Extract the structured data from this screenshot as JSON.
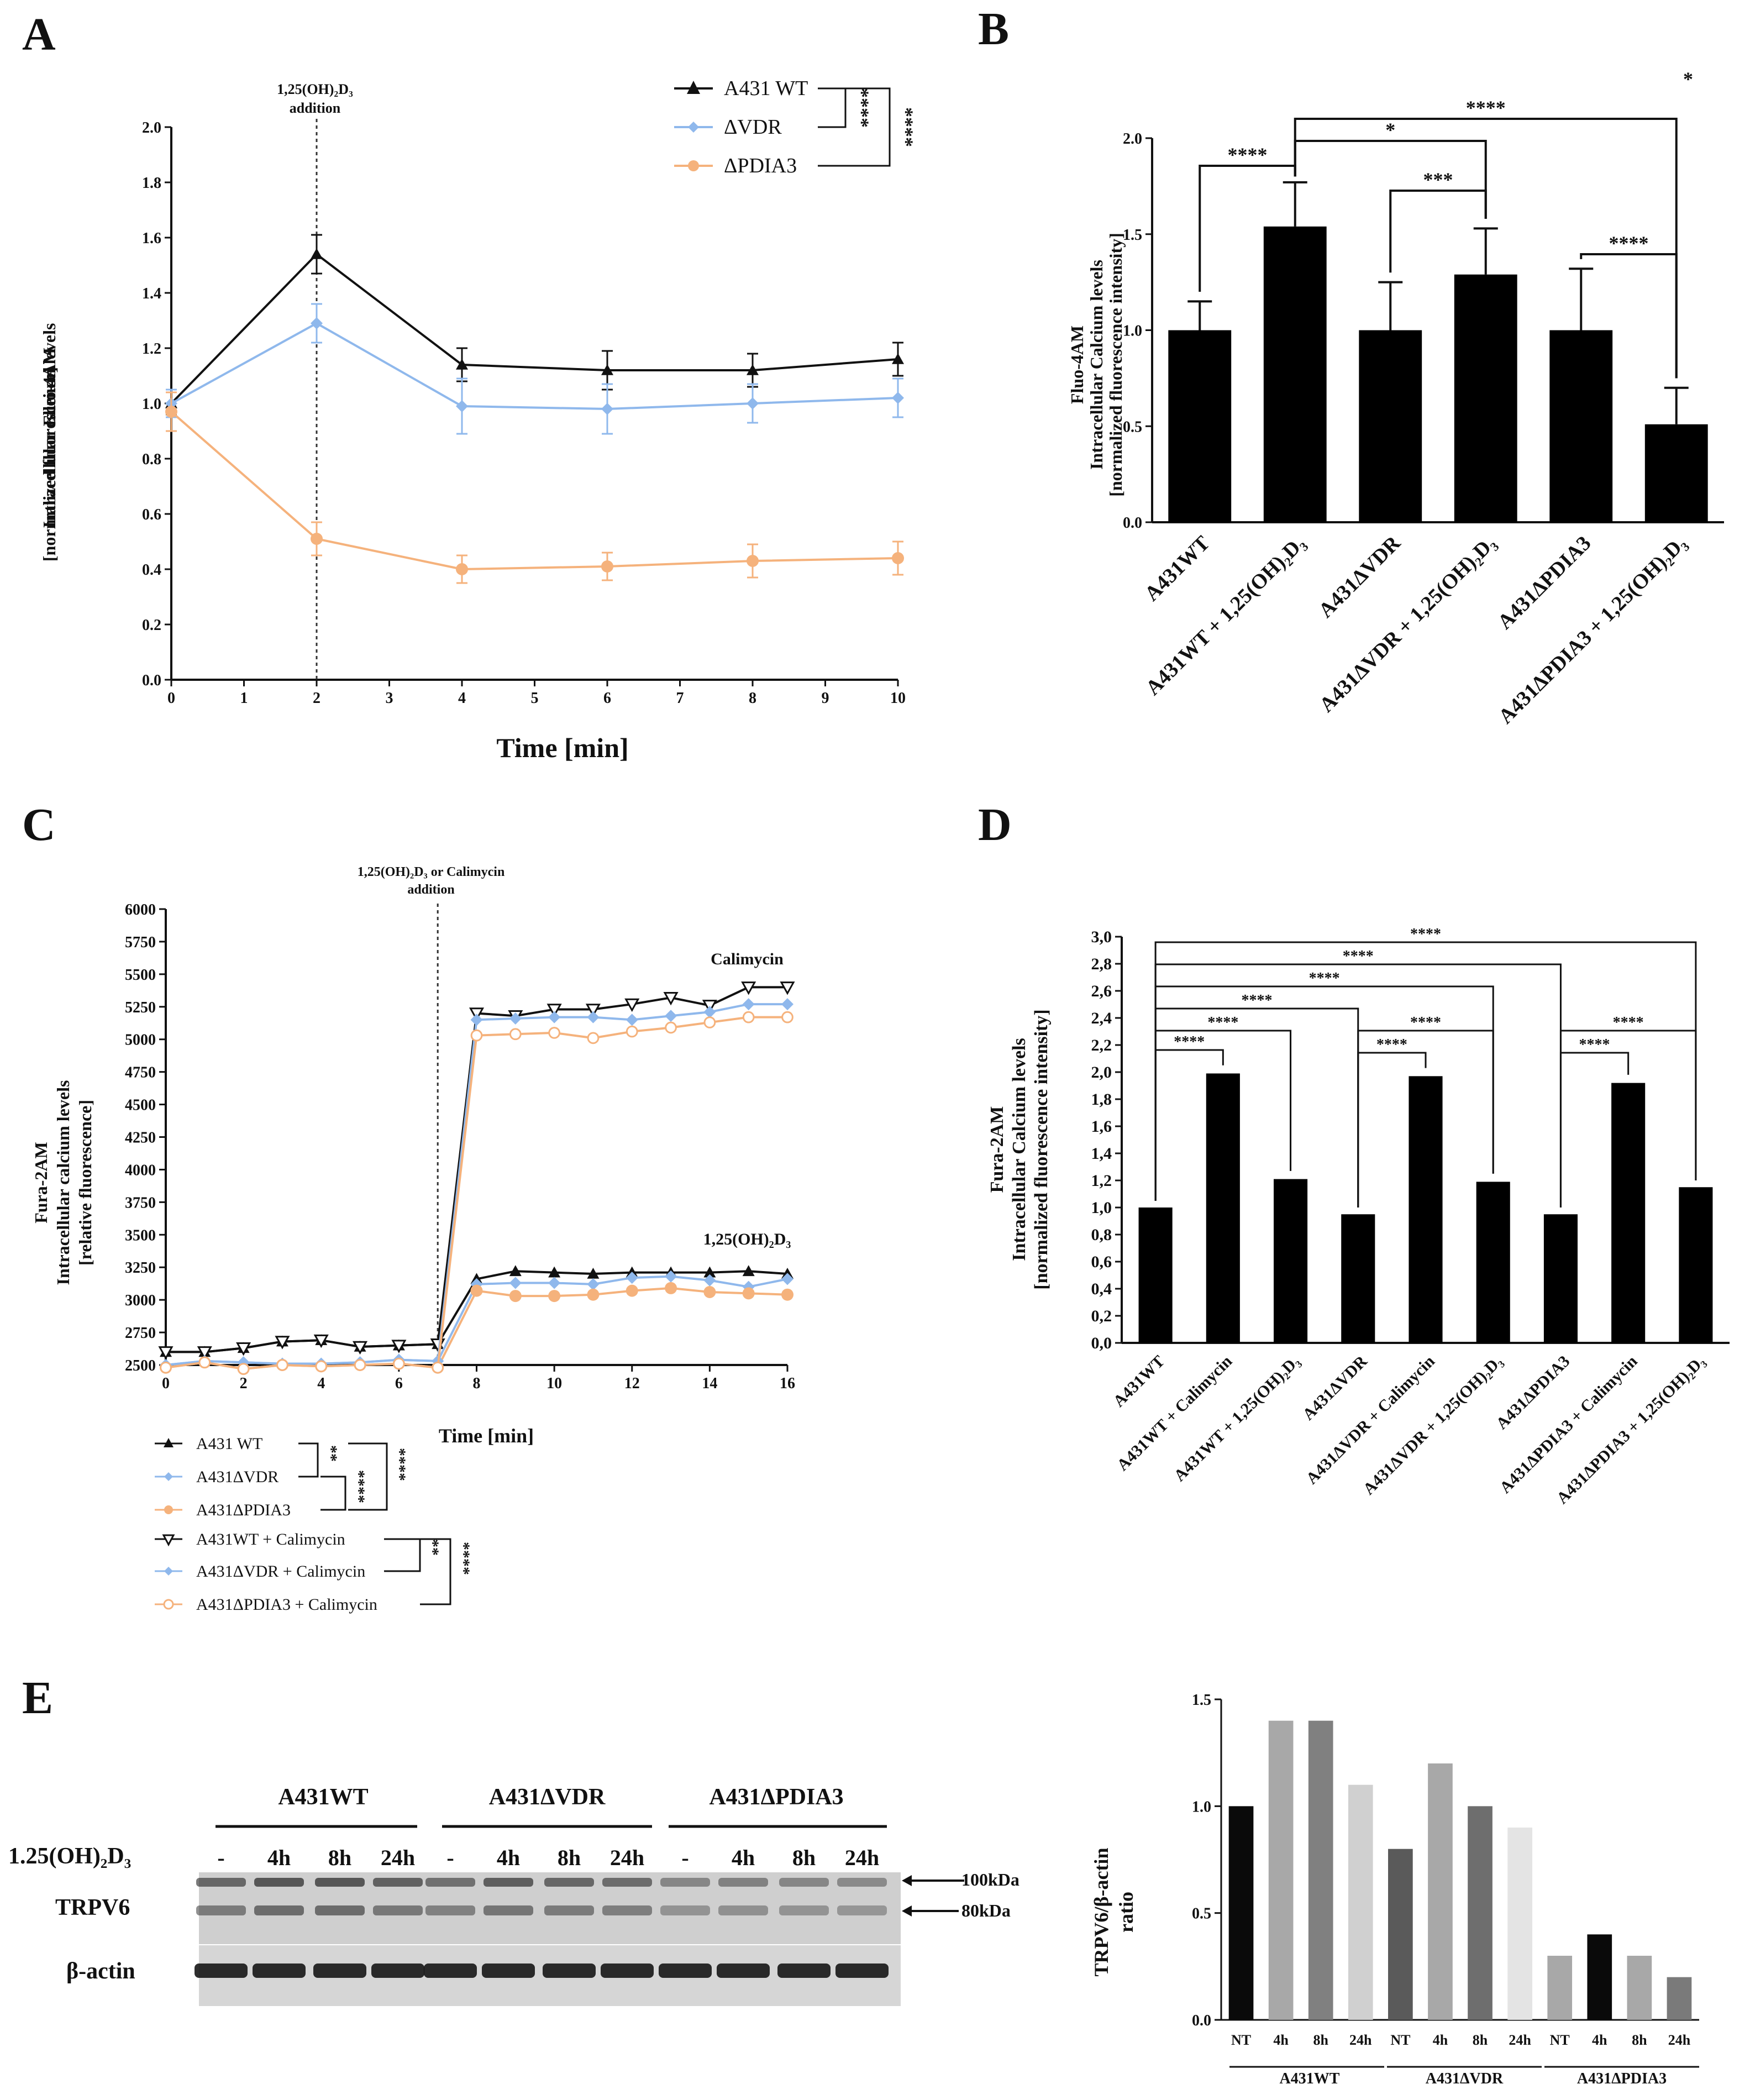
{
  "panels": {
    "A": {
      "label": "A",
      "annotation": "1,25(OH)₂D₃ addition",
      "annotation_lines": [
        "1,25(OH)₂D₃",
        "addition"
      ],
      "ylabel_lines": [
        "Fluo-4AM",
        "Intracellular calcium levels",
        "[normalized fluorescence]"
      ],
      "xlabel": "Time [min]",
      "legend": [
        "A431 WT",
        "ΔVDR",
        "ΔPDIA3"
      ],
      "sig": [
        "****",
        "****"
      ]
    },
    "B": {
      "label": "B",
      "ylabel_lines": [
        "Fluo-4AM",
        "Intracellular Calcium levels",
        "[normalized fluorescence intensity]"
      ],
      "categories": [
        "A431WT",
        "A431WT + 1,25(OH)₂D₃",
        "A431ΔVDR",
        "A431ΔVDR + 1,25(OH)₂D₃",
        "A431ΔPDIA3",
        "A431ΔPDIA3 + 1,25(OH)₂D₃"
      ],
      "sig": [
        "****",
        "****",
        "*",
        "***",
        "****",
        "*"
      ]
    },
    "C": {
      "label": "C",
      "annotation_lines": [
        "1,25(OH)₂D₃ or Calimycin",
        "addition"
      ],
      "ylabel_lines": [
        "Fura-2AM",
        "Intracellular calcium levels",
        "[relative fluorescence]"
      ],
      "xlabel": "Time [min]",
      "curve_labels": [
        "Calimycin",
        "1,25(OH)₂D₃"
      ],
      "legend": [
        "A431 WT",
        "A431ΔVDR",
        "A431ΔPDIA3",
        "A431WT + Calimycin",
        "A431ΔVDR + Calimycin",
        "A431ΔPDIA3 + Calimycin"
      ],
      "sig": [
        "**",
        "****",
        "****",
        "**",
        "****"
      ]
    },
    "D": {
      "label": "D",
      "ylabel_lines": [
        "Fura-2AM",
        "Intracellular Calcium levels",
        "[normalized fluorescence intensity]"
      ],
      "categories": [
        "A431WT",
        "A431WT + Calimycin",
        "A431WT + 1,25(OH)₂D₃",
        "A431ΔVDR",
        "A431ΔVDR + Calimycin",
        "A431ΔVDR + 1,25(OH)₂D₃",
        "A431ΔPDIA3",
        "A431ΔPDIA3 + Calimycin",
        "A431ΔPDIA3 + 1,25(OH)₂D₃"
      ],
      "sig": [
        "****",
        "****",
        "****",
        "****",
        "****",
        "****",
        "****",
        "****",
        "****",
        "****"
      ]
    },
    "E": {
      "label": "E",
      "groups": [
        "A431WT",
        "A431ΔVDR",
        "A431ΔPDIA3"
      ],
      "treatment_label": "1.25(OH)₂D₃",
      "lanes": [
        "-",
        "4h",
        "8h",
        "24h",
        "-",
        "4h",
        "8h",
        "24h",
        "-",
        "4h",
        "8h",
        "24h"
      ],
      "rows": [
        "TRPV6",
        "β-actin"
      ],
      "markers": [
        "100kDa",
        "80kDa"
      ],
      "chart_ylabel_lines": [
        "TRPV6/β-actin",
        "ratio"
      ],
      "chart_xlabels": [
        "NT",
        "4h",
        "8h",
        "24h",
        "NT",
        "4h",
        "8h",
        "24h",
        "NT",
        "4h",
        "8h",
        "24h"
      ]
    }
  },
  "colors": {
    "black": "#111111",
    "blue": "#8fb8ec",
    "orange": "#f5b27c"
  },
  "chart_data": [
    {
      "id": "A",
      "type": "line",
      "xlabel": "Time [min]",
      "ylabel": "Fluo-4AM Intracellular calcium levels [normalized fluorescence]",
      "xlim": [
        0,
        10
      ],
      "ylim": [
        0,
        2.0
      ],
      "xticks": [
        0,
        1,
        2,
        3,
        4,
        5,
        6,
        7,
        8,
        9,
        10
      ],
      "yticks": [
        0.0,
        0.2,
        0.4,
        0.6,
        0.8,
        1.0,
        1.2,
        1.4,
        1.6,
        1.8,
        2.0
      ],
      "ytick_labels": [
        "0.0",
        "0.2",
        "0.4",
        "0.6",
        "0.8",
        "1.0",
        "1.2",
        "1.4",
        "1.6",
        "1.8",
        "2.0"
      ],
      "marker_x": 2,
      "x": [
        0,
        2,
        4,
        6,
        8,
        10
      ],
      "series": [
        {
          "name": "A431 WT",
          "color": "#111111",
          "marker": "triangle",
          "values": [
            1.0,
            1.54,
            1.14,
            1.12,
            1.12,
            1.16
          ],
          "errors": [
            0.04,
            0.07,
            0.06,
            0.07,
            0.06,
            0.06
          ]
        },
        {
          "name": "ΔVDR",
          "color": "#8fb8ec",
          "marker": "diamond",
          "values": [
            1.0,
            1.29,
            0.99,
            0.98,
            1.0,
            1.02
          ],
          "errors": [
            0.05,
            0.07,
            0.1,
            0.09,
            0.07,
            0.07
          ]
        },
        {
          "name": "ΔPDIA3",
          "color": "#f5b27c",
          "marker": "circle",
          "values": [
            0.97,
            0.51,
            0.4,
            0.41,
            0.43,
            0.44
          ],
          "errors": [
            0.07,
            0.06,
            0.05,
            0.05,
            0.06,
            0.06
          ]
        }
      ]
    },
    {
      "id": "B",
      "type": "bar",
      "ylabel": "Fluo-4AM Intracellular Calcium levels [normalized fluorescence intensity]",
      "ylim": [
        0,
        2.0
      ],
      "yticks": [
        0.0,
        0.5,
        1.0,
        1.5,
        2.0
      ],
      "ytick_labels": [
        "0.0",
        "0.5",
        "1.0",
        "1.5",
        "2.0"
      ],
      "categories": [
        "A431WT",
        "A431WT + 1,25(OH)₂D₃",
        "A431ΔVDR",
        "A431ΔVDR + 1,25(OH)₂D₃",
        "A431ΔPDIA3",
        "A431ΔPDIA3 + 1,25(OH)₂D₃"
      ],
      "values": [
        1.0,
        1.54,
        1.0,
        1.29,
        1.0,
        0.51
      ],
      "errors": [
        0.15,
        0.23,
        0.25,
        0.24,
        0.32,
        0.19
      ]
    },
    {
      "id": "C",
      "type": "line",
      "xlabel": "Time [min]",
      "ylabel": "Fura-2AM Intracellular calcium levels [relative fluorescence]",
      "xlim": [
        0,
        16
      ],
      "ylim": [
        2500,
        6000
      ],
      "xticks": [
        0,
        2,
        4,
        6,
        8,
        10,
        12,
        14,
        16
      ],
      "yticks": [
        2500,
        2750,
        3000,
        3250,
        3500,
        3750,
        4000,
        4250,
        4500,
        4750,
        5000,
        5250,
        5500,
        5750,
        6000
      ],
      "marker_x": 7,
      "x": [
        0,
        1,
        2,
        3,
        4,
        5,
        6,
        7,
        8,
        9,
        10,
        11,
        12,
        13,
        14,
        15,
        16
      ],
      "series": [
        {
          "name": "A431 WT",
          "color": "#111111",
          "marker": "triangle",
          "values": [
            2600,
            2600,
            2630,
            2680,
            2690,
            2640,
            2650,
            2660,
            3160,
            3220,
            3210,
            3200,
            3210,
            3210,
            3210,
            3220,
            3200
          ]
        },
        {
          "name": "A431ΔVDR",
          "color": "#8fb8ec",
          "marker": "diamond",
          "values": [
            2500,
            2530,
            2520,
            2510,
            2510,
            2520,
            2540,
            2530,
            3120,
            3130,
            3130,
            3120,
            3170,
            3180,
            3150,
            3100,
            3160
          ]
        },
        {
          "name": "A431ΔPDIA3",
          "color": "#f5b27c",
          "marker": "circle",
          "values": [
            2480,
            2520,
            2470,
            2500,
            2490,
            2500,
            2510,
            2480,
            3070,
            3030,
            3030,
            3040,
            3070,
            3090,
            3060,
            3050,
            3040
          ]
        },
        {
          "name": "A431WT + Calimycin",
          "color": "#111111",
          "marker": "triangle-open",
          "values": [
            2600,
            2600,
            2630,
            2680,
            2690,
            2640,
            2650,
            2660,
            5200,
            5180,
            5230,
            5230,
            5270,
            5320,
            5260,
            5400,
            5400
          ]
        },
        {
          "name": "A431ΔVDR + Calimycin",
          "color": "#8fb8ec",
          "marker": "diamond",
          "values": [
            2500,
            2530,
            2520,
            2510,
            2510,
            2520,
            2540,
            2530,
            5150,
            5160,
            5170,
            5170,
            5150,
            5180,
            5210,
            5270,
            5270
          ]
        },
        {
          "name": "A431ΔPDIA3 + Calimycin",
          "color": "#f5b27c",
          "marker": "circle-open",
          "values": [
            2480,
            2520,
            2470,
            2500,
            2490,
            2500,
            2510,
            2480,
            5030,
            5040,
            5050,
            5010,
            5060,
            5090,
            5130,
            5170,
            5170
          ]
        }
      ]
    },
    {
      "id": "D",
      "type": "bar",
      "ylabel": "Fura-2AM Intracellular Calcium levels [normalized fluorescence intensity]",
      "ylim": [
        0,
        3.0
      ],
      "yticks": [
        0.0,
        0.2,
        0.4,
        0.6,
        0.8,
        1.0,
        1.2,
        1.4,
        1.6,
        1.8,
        2.0,
        2.2,
        2.4,
        2.6,
        2.8,
        3.0
      ],
      "ytick_labels": [
        "0,0",
        "0,2",
        "0,4",
        "0,6",
        "0,8",
        "1,0",
        "1,2",
        "1,4",
        "1,6",
        "1,8",
        "2,0",
        "2,2",
        "2,4",
        "2,6",
        "2,8",
        "3,0"
      ],
      "categories": [
        "A431WT",
        "A431WT + Calimycin",
        "A431WT + 1,25(OH)₂D₃",
        "A431ΔVDR",
        "A431ΔVDR + Calimycin",
        "A431ΔVDR + 1,25(OH)₂D₃",
        "A431ΔPDIA3",
        "A431ΔPDIA3 + Calimycin",
        "A431ΔPDIA3 + 1,25(OH)₂D₃"
      ],
      "values": [
        1.0,
        1.99,
        1.21,
        0.95,
        1.97,
        1.19,
        0.95,
        1.92,
        1.15
      ]
    },
    {
      "id": "E",
      "type": "bar",
      "ylabel": "TRPV6/β-actin ratio",
      "ylim": [
        0,
        1.5
      ],
      "yticks": [
        0.0,
        0.5,
        1.0,
        1.5
      ],
      "ytick_labels": [
        "0.0",
        "0.5",
        "1.0",
        "1.5"
      ],
      "groups": [
        "A431WT",
        "A431ΔVDR",
        "A431ΔPDIA3"
      ],
      "categories": [
        "NT",
        "4h",
        "8h",
        "24h",
        "NT",
        "4h",
        "8h",
        "24h",
        "NT",
        "4h",
        "8h",
        "24h"
      ],
      "values": [
        1.0,
        1.4,
        1.4,
        1.1,
        0.8,
        1.2,
        1.0,
        0.9,
        0.3,
        0.4,
        0.3,
        0.2
      ],
      "colors": [
        "#0a0a0a",
        "#a8a8a8",
        "#808080",
        "#d0d0d0",
        "#5a5a5a",
        "#a8a8a8",
        "#6e6e6e",
        "#e4e4e4",
        "#a8a8a8",
        "#0a0a0a",
        "#a8a8a8",
        "#7a7a7a"
      ]
    }
  ]
}
